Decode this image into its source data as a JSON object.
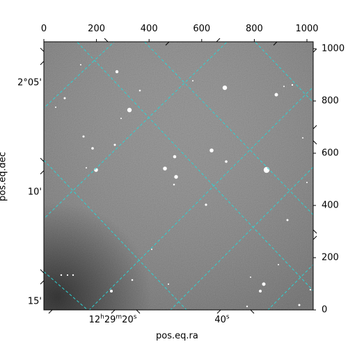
{
  "figure": {
    "pixel_axis_top_ticks": [
      "0",
      "200",
      "400",
      "600",
      "800",
      "1000"
    ],
    "pixel_axis_right_ticks": [
      "0",
      "200",
      "400",
      "600",
      "800",
      "1000"
    ],
    "dec_ticks": [
      {
        "deg": "2°",
        "min": "05'"
      },
      {
        "deg": "",
        "min": "10'"
      },
      {
        "deg": "",
        "min": "15'"
      }
    ],
    "ra_ticks": [
      {
        "h": "12",
        "m": "29",
        "s": "20"
      },
      {
        "h": "",
        "m": "",
        "s": "40"
      }
    ],
    "xlabel": "pos.eq.ra",
    "ylabel": "pos.eq.dec",
    "colors": {
      "background_sky": "#6f6f6f",
      "grid": "#2dd3d3",
      "frame": "#000000"
    }
  }
}
